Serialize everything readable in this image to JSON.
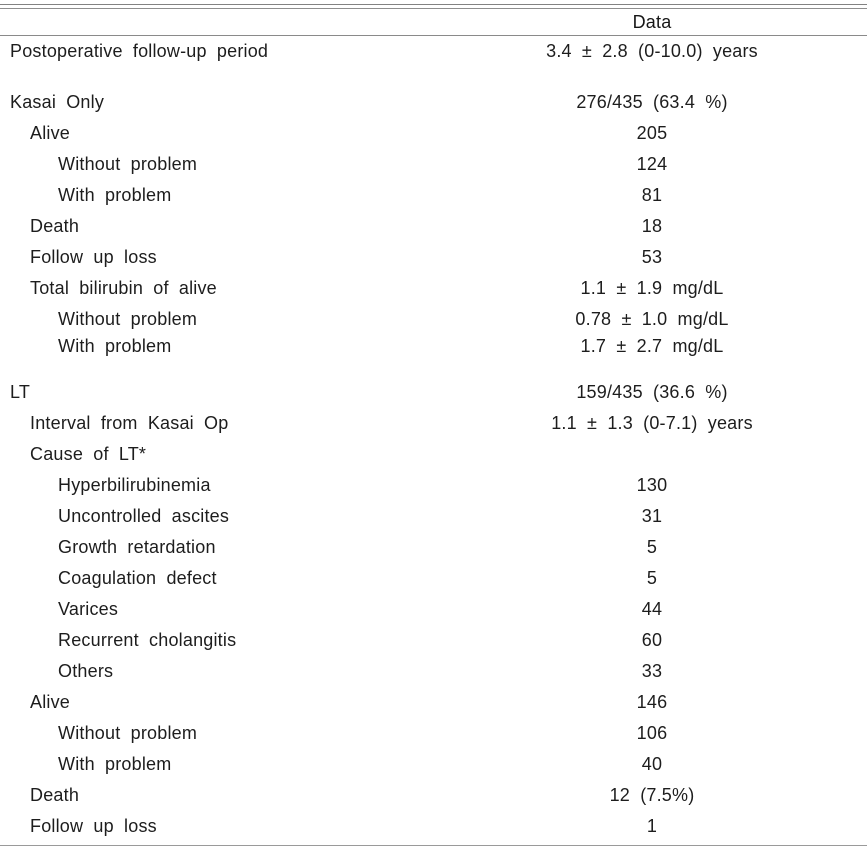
{
  "header": {
    "data_column_label": "Data"
  },
  "colors": {
    "background": "#ffffff",
    "text": "#1d1d1d",
    "rule": "#8a8a8a"
  },
  "table": {
    "rows": [
      {
        "label": "Postoperative follow-up period",
        "value": "3.4 ± 2.8  (0-10.0) years",
        "indent": 0
      },
      {
        "label": "Kasai Only",
        "value": "276/435  (63.4 %)",
        "indent": 0
      },
      {
        "label": "Alive",
        "value": "205",
        "indent": 1
      },
      {
        "label": "Without problem",
        "value": "124",
        "indent": 2
      },
      {
        "label": "With problem",
        "value": "81",
        "indent": 2
      },
      {
        "label": "Death",
        "value": "18",
        "indent": 1
      },
      {
        "label": "Follow up loss",
        "value": "53",
        "indent": 1
      },
      {
        "label": "Total bilirubin of alive",
        "value": "1.1 ± 1.9 mg/dL",
        "indent": 1
      },
      {
        "label": "Without problem",
        "value": "0.78 ± 1.0 mg/dL",
        "indent": 2
      },
      {
        "label": "With problem",
        "value": "1.7 ± 2.7 mg/dL",
        "indent": 2
      },
      {
        "label": "LT",
        "value": "159/435  (36.6 %)",
        "indent": 0
      },
      {
        "label": "Interval from Kasai Op",
        "value": "1.1 ± 1.3  (0-7.1) years",
        "indent": 1
      },
      {
        "label": "Cause of LT*",
        "value": "",
        "indent": 1
      },
      {
        "label": "Hyperbilirubinemia",
        "value": "130",
        "indent": 2
      },
      {
        "label": "Uncontrolled ascites",
        "value": "31",
        "indent": 2
      },
      {
        "label": "Growth retardation",
        "value": "5",
        "indent": 2
      },
      {
        "label": "Coagulation defect",
        "value": "5",
        "indent": 2
      },
      {
        "label": "Varices",
        "value": "44",
        "indent": 2
      },
      {
        "label": "Recurrent cholangitis",
        "value": "60",
        "indent": 2
      },
      {
        "label": "Others",
        "value": "33",
        "indent": 2
      },
      {
        "label": "Alive",
        "value": "146",
        "indent": 1
      },
      {
        "label": "Without problem",
        "value": "106",
        "indent": 2
      },
      {
        "label": "With problem",
        "value": "40",
        "indent": 2
      },
      {
        "label": "Death",
        "value": "12  (7.5%)",
        "indent": 1
      },
      {
        "label": "Follow up loss",
        "value": "1",
        "indent": 1
      }
    ]
  }
}
